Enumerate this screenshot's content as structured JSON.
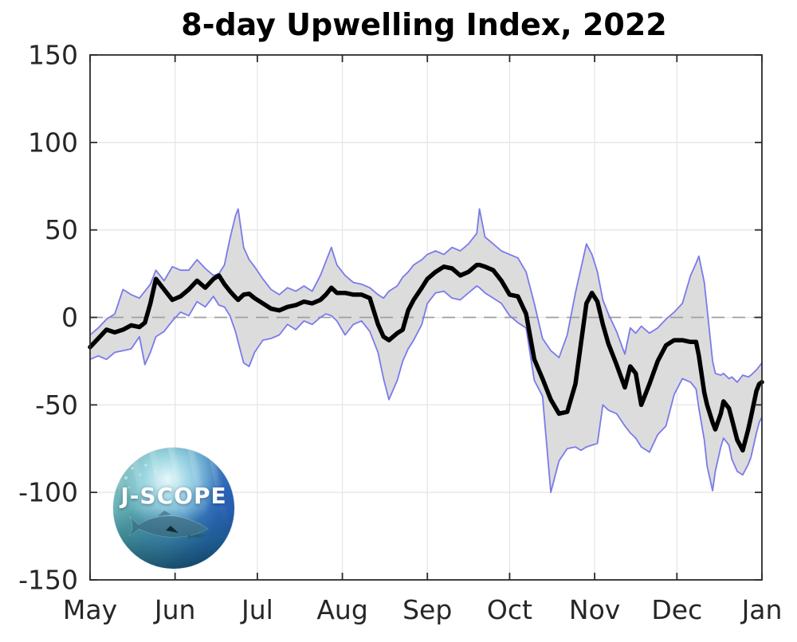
{
  "page": {
    "background": "#ffffff"
  },
  "logo": {
    "label": "J-SCOPE"
  },
  "chart_data": {
    "type": "line",
    "title": "8-day Upwelling Index, 2022",
    "xlabel": "",
    "ylabel": "",
    "x_unit": "days since May 1",
    "xlim": [
      0,
      245
    ],
    "ylim": [
      -150,
      150
    ],
    "x_tick_days": [
      0,
      31,
      61,
      92,
      123,
      153,
      184,
      214,
      245
    ],
    "x_tick_labels": [
      "May",
      "Jun",
      "Jul",
      "Aug",
      "Sep",
      "Oct",
      "Nov",
      "Dec",
      "Jan"
    ],
    "y_ticks": [
      -150,
      -100,
      -50,
      0,
      50,
      100,
      150
    ],
    "grid": true,
    "legend": "none",
    "zero_line": {
      "show": true,
      "style": "dashed",
      "color": "#a0a0a0"
    },
    "colors": {
      "mean": "#000000",
      "envelope": "#7a7aeb",
      "band": "#dcdcdc",
      "grid": "#e6e6e6",
      "axis": "#2b2b2b",
      "text": "#262626"
    },
    "days": [
      0,
      3,
      6,
      9,
      12,
      15,
      18,
      20,
      22,
      24,
      27,
      30,
      33,
      36,
      39,
      42,
      45,
      47,
      49,
      51,
      53,
      54,
      56,
      58,
      60,
      63,
      66,
      69,
      72,
      75,
      78,
      81,
      84,
      86,
      88,
      90,
      93,
      96,
      99,
      102,
      105,
      107,
      109,
      112,
      114,
      116,
      118,
      121,
      123,
      126,
      129,
      132,
      135,
      138,
      141,
      142,
      144,
      147,
      150,
      153,
      156,
      159,
      162,
      165,
      168,
      171,
      174,
      177,
      179,
      181,
      183,
      185,
      187,
      189,
      192,
      195,
      197,
      199,
      201,
      204,
      207,
      210,
      213,
      216,
      219,
      221,
      222,
      224,
      225,
      227,
      228,
      230,
      231,
      233,
      234,
      236,
      238,
      240,
      241,
      243,
      244,
      245
    ],
    "series": [
      {
        "name": "8-day mean upwelling index",
        "role": "mean",
        "color": "#000000",
        "values": [
          -17,
          -12,
          -7,
          -8.5,
          -7,
          -4.5,
          -5.5,
          -3,
          8,
          22,
          16,
          10,
          12,
          16,
          21,
          17,
          22,
          24,
          19,
          15,
          11.5,
          10,
          13,
          13.5,
          11,
          8,
          5,
          4,
          6,
          7,
          9,
          8,
          10,
          13,
          17,
          14,
          14,
          13,
          13,
          11,
          -4,
          -11,
          -13,
          -9,
          -7,
          4,
          10,
          17,
          22,
          26,
          29,
          28,
          24,
          26,
          30,
          30,
          29,
          27,
          21,
          13,
          12,
          2,
          -24,
          -35,
          -47,
          -55,
          -54,
          -38,
          -15,
          8,
          14,
          9,
          -4,
          -15,
          -27,
          -40,
          -28,
          -32,
          -50,
          -38,
          -25,
          -16,
          -13,
          -13,
          -14,
          -14,
          -22,
          -43,
          -50,
          -60,
          -64,
          -55,
          -48,
          -52,
          -58,
          -70,
          -76,
          -64,
          -57,
          -42,
          -38,
          -37
        ]
      },
      {
        "name": "upper envelope",
        "role": "upper",
        "color": "#7a7aeb",
        "values": [
          -10,
          -6,
          -1,
          2,
          16,
          13,
          11,
          15,
          19,
          27,
          21,
          29,
          27,
          27,
          33,
          28,
          24,
          25,
          30,
          45,
          58,
          62,
          40,
          33,
          29,
          22,
          16,
          13,
          17,
          15,
          18,
          15,
          24,
          32,
          40,
          30,
          24,
          20,
          19,
          17,
          13,
          11,
          15,
          18,
          23,
          26,
          30,
          33,
          36,
          38,
          36,
          40,
          38,
          42,
          48,
          62,
          46,
          42,
          38,
          36,
          34,
          26,
          8,
          -12,
          -19,
          -23,
          -10,
          14,
          28,
          42,
          36,
          26,
          10,
          2,
          -8,
          -21,
          -6,
          -9,
          -5,
          -9,
          -6,
          -1,
          3,
          8,
          24,
          31,
          35,
          20,
          5,
          -25,
          -32,
          -33,
          -32,
          -35,
          -34,
          -37,
          -33,
          -34,
          -33,
          -30,
          -28,
          -26
        ]
      },
      {
        "name": "lower envelope",
        "role": "lower",
        "color": "#7a7aeb",
        "values": [
          -24,
          -22,
          -24,
          -20,
          -19,
          -18,
          -11,
          -27,
          -20,
          -11,
          -8,
          -2,
          3,
          1,
          9,
          6,
          12,
          7,
          6,
          1,
          -8,
          -14,
          -26,
          -28,
          -20,
          -13,
          -12,
          -10,
          -4,
          -7,
          -2,
          -4,
          0,
          2,
          1,
          -2,
          -10,
          -4,
          -2,
          -8,
          -20,
          -35,
          -47,
          -36,
          -25,
          -18,
          -13,
          -4,
          8,
          14,
          15,
          11,
          10,
          14,
          18,
          17,
          14,
          11,
          8,
          1,
          -3,
          -6,
          -36,
          -45,
          -100,
          -82,
          -75,
          -74,
          -76,
          -74,
          -73,
          -72,
          -50,
          -53,
          -55,
          -62,
          -66,
          -69,
          -74,
          -77,
          -67,
          -62,
          -44,
          -35,
          -37,
          -41,
          -52,
          -70,
          -85,
          -99,
          -88,
          -74,
          -69,
          -73,
          -81,
          -88,
          -90,
          -84,
          -80,
          -66,
          -60,
          -57
        ]
      }
    ]
  }
}
